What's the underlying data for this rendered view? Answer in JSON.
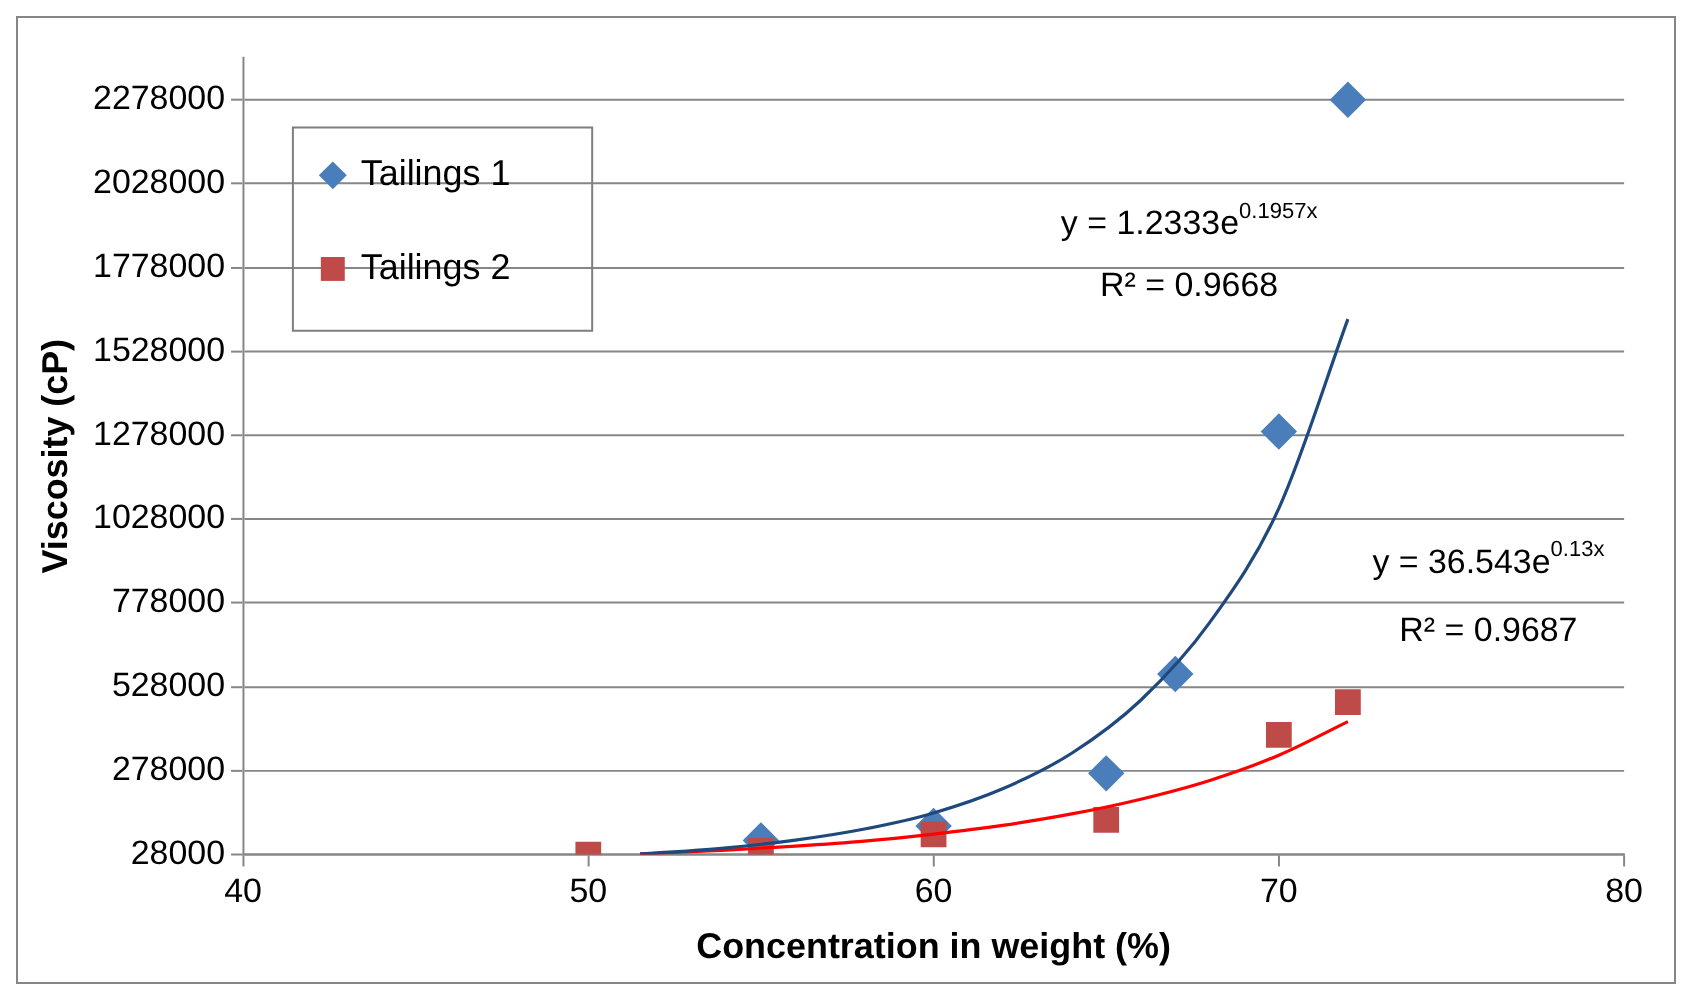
{
  "chart_data": {
    "type": "scatter",
    "xlabel": "Concentration in weight (%)",
    "ylabel": "Viscosity (cP)",
    "xlim": [
      40,
      80
    ],
    "xticks": [
      40,
      50,
      60,
      70,
      80
    ],
    "ylim": [
      28000,
      2403000
    ],
    "yticks": [
      28000,
      278000,
      528000,
      778000,
      1028000,
      1278000,
      1528000,
      1778000,
      2028000,
      2278000
    ],
    "grid": "y",
    "legend": "top left",
    "series": [
      {
        "name": "Tailings 1",
        "color": "#4a7ebb",
        "marker": "diamond",
        "x": [
          55,
          60,
          65,
          67,
          70,
          72
        ],
        "values": [
          70000,
          113000,
          270000,
          566000,
          1289000,
          2278000
        ]
      },
      {
        "name": "Tailings 2",
        "color": "#be4b48",
        "marker": "square",
        "x": [
          50,
          55,
          60,
          65,
          70,
          72
        ],
        "values": [
          28000,
          40000,
          88000,
          131000,
          385000,
          482000
        ]
      },
      {
        "type": "line",
        "color": "#1f497d",
        "marker": "none",
        "x": [
          51.5,
          54,
          56,
          58,
          60,
          62,
          64,
          66,
          68,
          70,
          72
        ],
        "values": [
          29000,
          48000,
          71000,
          104000,
          152000,
          224000,
          330000,
          488000,
          720000,
          1060000,
          1624000
        ]
      },
      {
        "type": "line",
        "color": "#ff0000",
        "marker": "none",
        "x": [
          51.5,
          54,
          56,
          58,
          60,
          62,
          64,
          66,
          68,
          70,
          72
        ],
        "values": [
          30000,
          41000,
          53000,
          68000,
          89000,
          115000,
          149000,
          193000,
          249000,
          324000,
          424000
        ]
      }
    ],
    "annotations": [
      "y = 1.2333e$^{0.1957x}$",
      "R² = 0.9668",
      "y = 36.543e$^{0.13x}$",
      "R² = 0.9687"
    ]
  }
}
